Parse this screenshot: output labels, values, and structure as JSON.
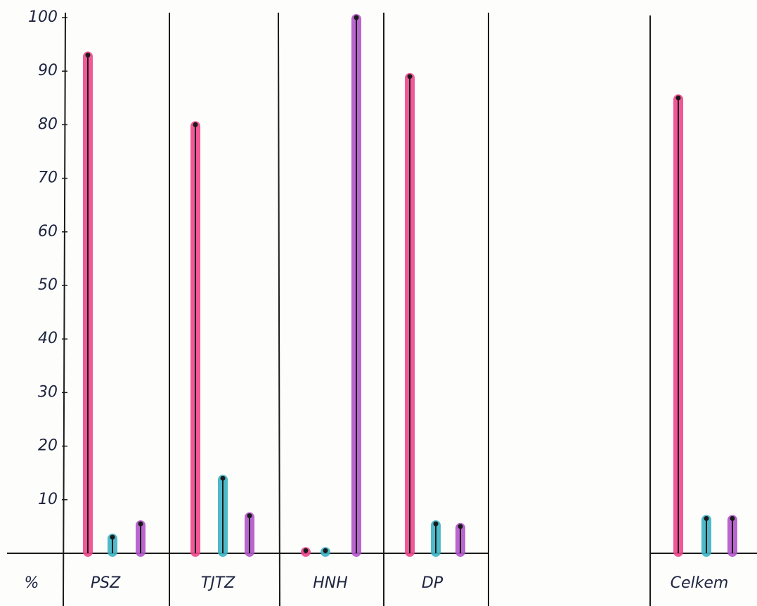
{
  "chart_data": {
    "type": "bar",
    "y_label": "%",
    "categories": [
      "PSZ",
      "TJTZ",
      "HNH",
      "DP",
      "Celkem"
    ],
    "series": [
      {
        "color": "#f0468c",
        "values": [
          93,
          80,
          0.5,
          89,
          85
        ]
      },
      {
        "color": "#3bb3c3",
        "values": [
          3,
          14,
          0.5,
          5.5,
          6.5
        ]
      },
      {
        "color": "#b155c9",
        "values": [
          5.5,
          7,
          100,
          5,
          6.5
        ]
      }
    ],
    "ylim": [
      0,
      100
    ],
    "yticks": [
      10,
      20,
      30,
      40,
      50,
      60,
      70,
      80,
      90,
      100
    ]
  }
}
